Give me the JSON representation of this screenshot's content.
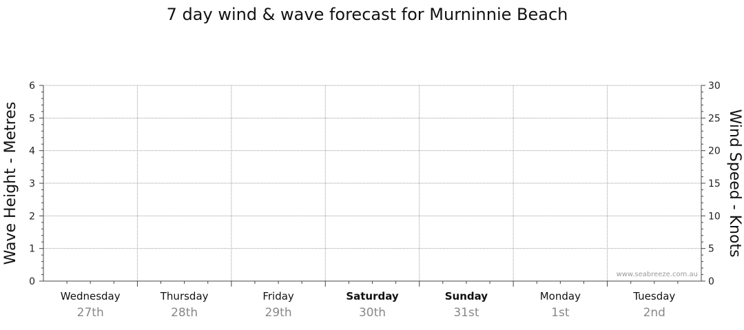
{
  "chart_data": {
    "type": "line",
    "title": "7 day wind & wave forecast for Murninnie Beach",
    "ylabel_left": "Wave Height - Metres",
    "ylabel_right": "Wind Speed - Knots",
    "ylim_left": [
      0,
      6
    ],
    "ylim_right": [
      0,
      30
    ],
    "yticks_left": [
      "0",
      "1",
      "2",
      "3",
      "4",
      "5",
      "6"
    ],
    "yticks_right": [
      "0",
      "5",
      "10",
      "15",
      "20",
      "25",
      "30"
    ],
    "grid": true,
    "watermark": "www.seabreeze.com.au",
    "categories": [
      {
        "day": "Wednesday",
        "date": "27th",
        "weekend": false
      },
      {
        "day": "Thursday",
        "date": "28th",
        "weekend": false
      },
      {
        "day": "Friday",
        "date": "29th",
        "weekend": false
      },
      {
        "day": "Saturday",
        "date": "30th",
        "weekend": true
      },
      {
        "day": "Sunday",
        "date": "31st",
        "weekend": true
      },
      {
        "day": "Monday",
        "date": "1st",
        "weekend": false
      },
      {
        "day": "Tuesday",
        "date": "2nd",
        "weekend": false
      }
    ],
    "series": []
  }
}
